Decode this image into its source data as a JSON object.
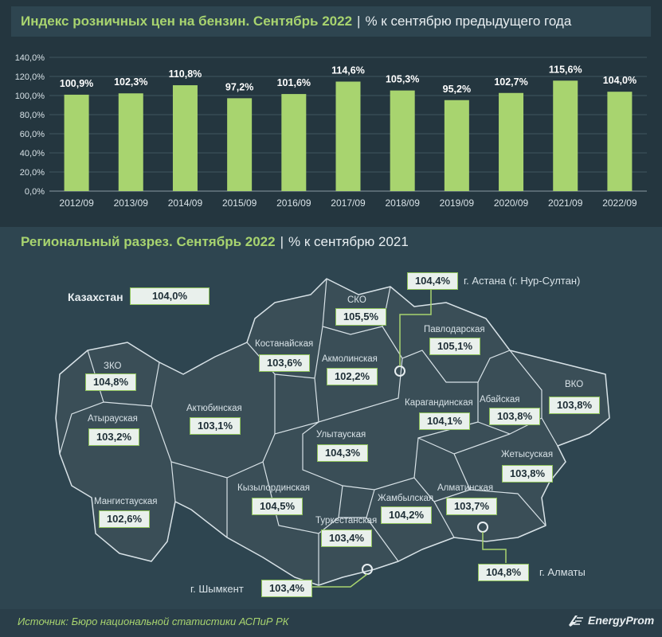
{
  "header1": {
    "title": "Индекс розничных цен на бензин. Сентябрь 2022",
    "subtitle": "% к сентябрю предыдущего года"
  },
  "header2": {
    "title": "Региональный разрез. Сентябрь 2022",
    "subtitle": "% к сентябрю 2021"
  },
  "chart_data": {
    "type": "bar",
    "categories": [
      "2012/09",
      "2013/09",
      "2014/09",
      "2015/09",
      "2016/09",
      "2017/09",
      "2018/09",
      "2019/09",
      "2020/09",
      "2021/09",
      "2022/09"
    ],
    "values": [
      100.9,
      102.3,
      110.8,
      97.2,
      101.6,
      114.6,
      105.3,
      95.2,
      102.7,
      115.6,
      104.0
    ],
    "value_labels": [
      "100,9%",
      "102,3%",
      "110,8%",
      "97,2%",
      "101,6%",
      "114,6%",
      "105,3%",
      "95,2%",
      "102,7%",
      "115,6%",
      "104,0%"
    ],
    "yticks": [
      "0,0%",
      "20,0%",
      "40,0%",
      "60,0%",
      "80,0%",
      "100,0%",
      "120,0%",
      "140,0%"
    ],
    "ylim": [
      0,
      140
    ],
    "bar_color": "#a8d46f",
    "grid": true
  },
  "map": {
    "country_label": "Казахстан",
    "country_value": "104,0%",
    "regions": [
      {
        "name": "ЗКО",
        "value": "104,8%"
      },
      {
        "name": "Атырауская",
        "value": "103,2%"
      },
      {
        "name": "Мангистауская",
        "value": "102,6%"
      },
      {
        "name": "Актюбинская",
        "value": "103,1%"
      },
      {
        "name": "Костанайская",
        "value": "103,6%"
      },
      {
        "name": "СКО",
        "value": "105,5%"
      },
      {
        "name": "Акмолинская",
        "value": "102,2%"
      },
      {
        "name": "Павлодарская",
        "value": "105,1%"
      },
      {
        "name": "Карагандинская",
        "value": "104,1%"
      },
      {
        "name": "Абайская",
        "value": "103,8%"
      },
      {
        "name": "ВКО",
        "value": "103,8%"
      },
      {
        "name": "Улытауская",
        "value": "104,3%"
      },
      {
        "name": "Кызылординская",
        "value": "104,5%"
      },
      {
        "name": "Жамбылская",
        "value": "104,2%"
      },
      {
        "name": "Алматинская",
        "value": "103,7%"
      },
      {
        "name": "Жетысуская",
        "value": "103,8%"
      },
      {
        "name": "Туркестанская",
        "value": "103,4%"
      }
    ],
    "cities": [
      {
        "name": "г. Астана (г. Нур-Султан)",
        "value": "104,4%"
      },
      {
        "name": "г. Алматы",
        "value": "104,8%"
      },
      {
        "name": "г. Шымкент",
        "value": "103,4%"
      }
    ]
  },
  "footer": {
    "source": "Источник: Бюро национальной статистики АСПиР РК",
    "brand": "EnergyProm"
  },
  "colors": {
    "accent": "#a8d46f",
    "background": "#2a3e49",
    "map_fill": "#34474f"
  }
}
